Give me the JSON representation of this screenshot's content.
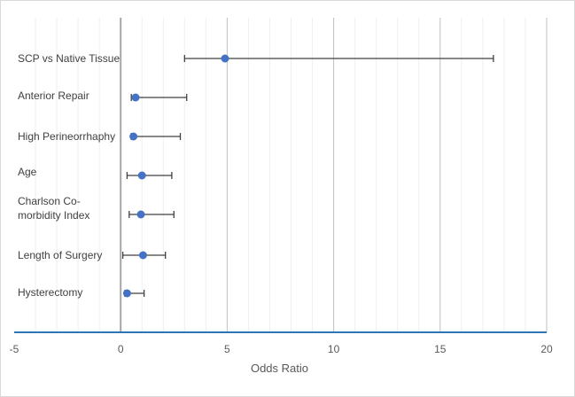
{
  "chart_data": {
    "type": "scatter",
    "subtype": "forest-plot",
    "xlabel": "Odds Ratio",
    "xlim": [
      -5,
      20
    ],
    "x_major_ticks": [
      -5,
      0,
      5,
      10,
      15,
      20
    ],
    "x_minor_step": 1,
    "grid": "vertical major and minor",
    "point_color": "#4472C4",
    "axis_color": "#2E75B6",
    "errorbar_color": "#404040",
    "rows": [
      {
        "label_lines": [
          "SCP vs Native Tissue"
        ],
        "value": 4.9,
        "lower": 3.0,
        "upper": 17.5
      },
      {
        "label_lines": [
          "Anterior Repair"
        ],
        "value": 0.7,
        "lower": 0.5,
        "upper": 3.1
      },
      {
        "label_lines": [
          "High Perineorrhaphy"
        ],
        "value": 0.6,
        "lower": 0.5,
        "upper": 2.8
      },
      {
        "label_lines": [
          "Age"
        ],
        "value": 1.0,
        "lower": 0.3,
        "upper": 2.4
      },
      {
        "label_lines": [
          "Charlson Co-",
          "morbidity Index"
        ],
        "value": 0.95,
        "lower": 0.4,
        "upper": 2.5
      },
      {
        "label_lines": [
          "Length of Surgery"
        ],
        "value": 1.05,
        "lower": 0.1,
        "upper": 2.1
      },
      {
        "label_lines": [
          "Hysterectomy"
        ],
        "value": 0.3,
        "lower": 0.2,
        "upper": 1.1
      }
    ]
  }
}
